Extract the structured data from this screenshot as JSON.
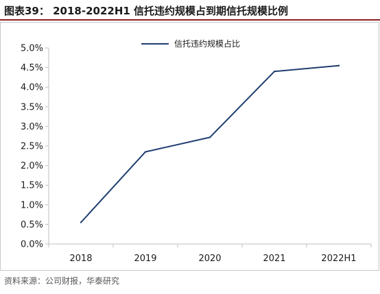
{
  "header": {
    "title": "图表39： 2018-2022H1 信托违约规模占到期信托规模比例"
  },
  "source": "资料来源：公司财报，华泰研究",
  "colors": {
    "series": "#1f3d70",
    "header_rule": "#8a1f1f",
    "axis": "#bfbfbf"
  },
  "chart_data": {
    "type": "line",
    "title": "",
    "xlabel": "",
    "ylabel": "",
    "categories": [
      "2018",
      "2019",
      "2020",
      "2021",
      "2022H1"
    ],
    "series": [
      {
        "name": "信托违约规模占比",
        "values": [
          0.55,
          2.35,
          2.72,
          4.4,
          4.55
        ]
      }
    ],
    "ylim": [
      0,
      5
    ],
    "yticks": [
      0,
      0.5,
      1.0,
      1.5,
      2.0,
      2.5,
      3.0,
      3.5,
      4.0,
      4.5,
      5.0
    ],
    "ytick_labels": [
      "0.0%",
      "0.5%",
      "1.0%",
      "1.5%",
      "2.0%",
      "2.5%",
      "3.0%",
      "3.5%",
      "4.0%",
      "4.5%",
      "5.0%"
    ],
    "grid": false,
    "legend_position": "top-center"
  }
}
